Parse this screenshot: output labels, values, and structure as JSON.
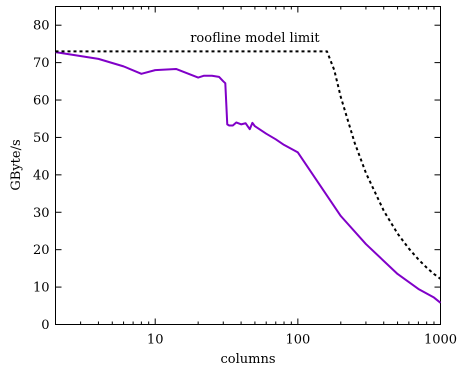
{
  "chart_data": {
    "type": "line",
    "title": "",
    "xlabel": "columns",
    "ylabel": "GByte/s",
    "xscale": "log",
    "xlim": [
      2,
      1000
    ],
    "ylim": [
      0,
      85
    ],
    "grid": false,
    "x_ticks": [
      {
        "value": 10,
        "label": "10"
      },
      {
        "value": 100,
        "label": "100"
      },
      {
        "value": 1000,
        "label": "1000"
      }
    ],
    "y_ticks": [
      {
        "value": 0,
        "label": "0"
      },
      {
        "value": 10,
        "label": "10"
      },
      {
        "value": 20,
        "label": "20"
      },
      {
        "value": 30,
        "label": "30"
      },
      {
        "value": 40,
        "label": "40"
      },
      {
        "value": 50,
        "label": "50"
      },
      {
        "value": 60,
        "label": "60"
      },
      {
        "value": 70,
        "label": "70"
      },
      {
        "value": 80,
        "label": "80"
      }
    ],
    "series": [
      {
        "color": "#8000c8",
        "style": "solid",
        "x": [
          2,
          4,
          6,
          8,
          10,
          14,
          20,
          22,
          25,
          28,
          30,
          31,
          32,
          33,
          35,
          37,
          40,
          43,
          46,
          48,
          50,
          60,
          70,
          80,
          100,
          200,
          300,
          500,
          700,
          900,
          1000
        ],
        "y": [
          72.8,
          71,
          69,
          67,
          68,
          68.3,
          66,
          66.5,
          66.5,
          66.2,
          65,
          64.5,
          53.5,
          53.2,
          53.2,
          54,
          53.5,
          53.8,
          52.2,
          53.9,
          53,
          51,
          49.5,
          48,
          46,
          29,
          21.5,
          13.5,
          9.5,
          7.2,
          5.8
        ]
      },
      {
        "color": "#000000",
        "style": "dotted",
        "x": [
          2,
          100,
          160,
          180,
          200,
          250,
          300,
          400,
          500,
          600,
          700,
          800,
          900,
          1000
        ],
        "y": [
          73,
          73,
          73,
          68,
          60.8,
          48.6,
          40.5,
          30.4,
          24.3,
          20.3,
          17.4,
          15.2,
          13.5,
          12.2
        ]
      }
    ],
    "annotations": [
      {
        "text": "roofline model limit",
        "x": 50,
        "y": 75.5
      }
    ]
  }
}
